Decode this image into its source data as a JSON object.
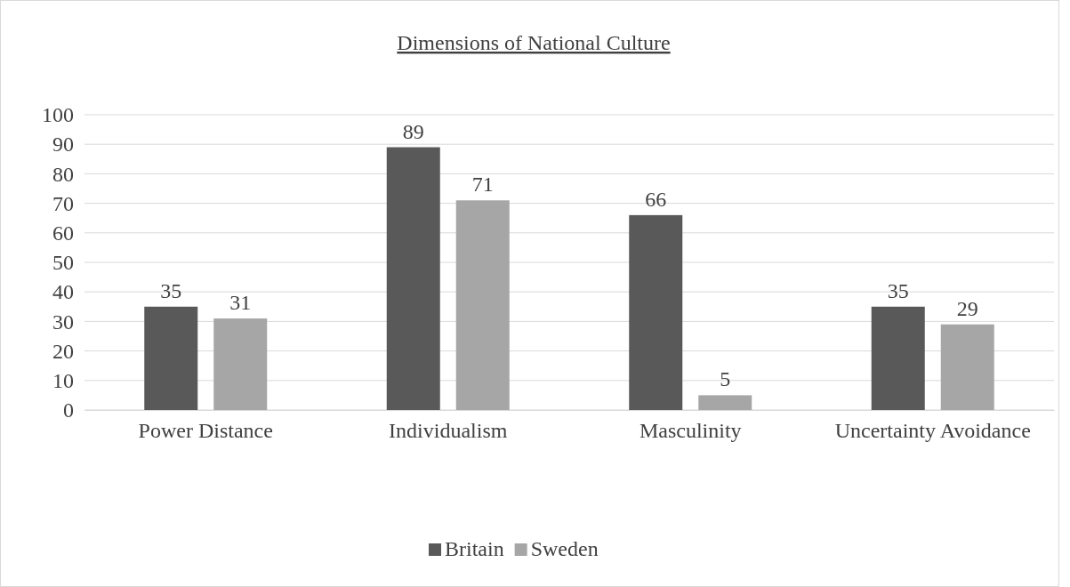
{
  "chart_data": {
    "type": "bar",
    "title": "Dimensions of National Culture",
    "categories": [
      "Power Distance",
      "Individualism",
      "Masculinity",
      "Uncertainty Avoidance"
    ],
    "series": [
      {
        "name": "Britain",
        "color": "#595959",
        "values": [
          35,
          89,
          66,
          35
        ]
      },
      {
        "name": "Sweden",
        "color": "#a6a6a6",
        "values": [
          31,
          71,
          5,
          29
        ]
      }
    ],
    "ylim": [
      0,
      100
    ],
    "yticks": [
      0,
      10,
      20,
      30,
      40,
      50,
      60,
      70,
      80,
      90,
      100
    ],
    "grid": "y",
    "legend": "bottom",
    "data_labels": true
  }
}
